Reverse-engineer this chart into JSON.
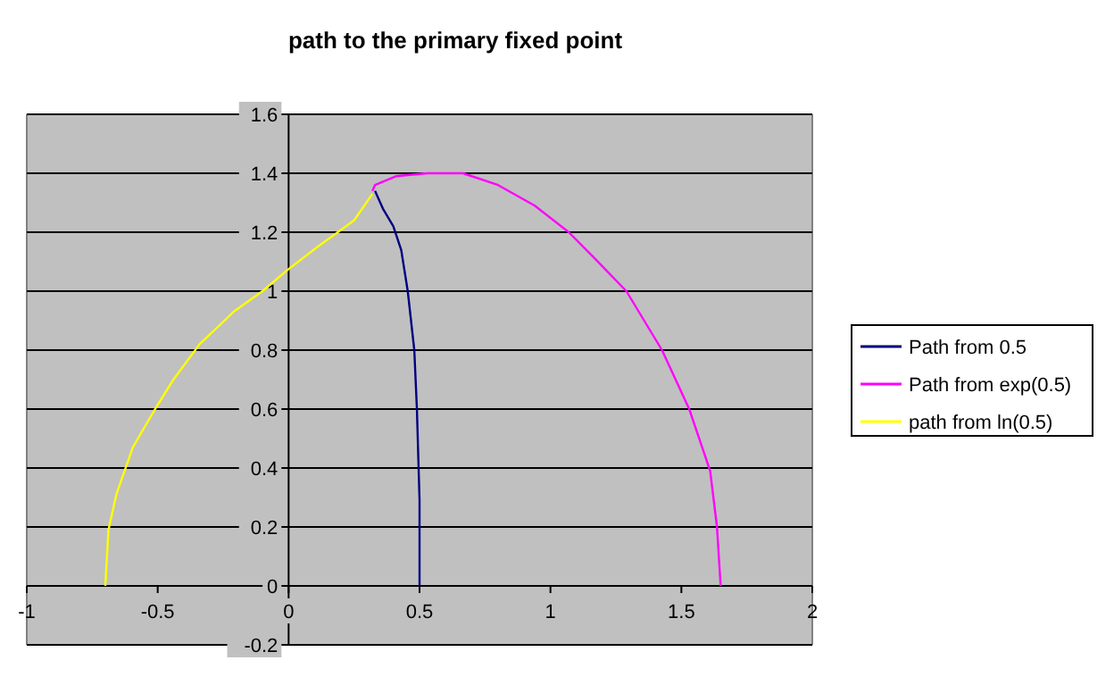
{
  "chart_data": {
    "type": "line",
    "title": "path to the primary fixed point",
    "xlim": [
      -1,
      2
    ],
    "ylim": [
      -0.2,
      1.6
    ],
    "xticks": [
      -1,
      -0.5,
      0,
      0.5,
      1,
      1.5,
      2
    ],
    "yticks": [
      -0.2,
      0,
      0.2,
      0.4,
      0.6,
      0.8,
      1,
      1.2,
      1.4,
      1.6
    ],
    "grid": "y",
    "legend": "right",
    "marker": "none",
    "line_style": "solid",
    "series": [
      {
        "name": "Path from 0.5",
        "color": "#000080",
        "x": [
          0.5,
          0.5,
          0.49,
          0.48,
          0.455,
          0.43,
          0.4,
          0.36,
          0.33
        ],
        "values": [
          0,
          0.29,
          0.6,
          0.8,
          1.0,
          1.14,
          1.22,
          1.28,
          1.34
        ]
      },
      {
        "name": "Path from exp(0.5)",
        "color": "#ff00ff",
        "x": [
          1.65,
          1.636,
          1.61,
          1.53,
          1.426,
          1.29,
          1.17,
          1.07,
          0.94,
          0.8,
          0.666,
          0.53,
          0.41,
          0.33,
          0.32
        ],
        "values": [
          0,
          0.2,
          0.39,
          0.6,
          0.8,
          1.0,
          1.11,
          1.2,
          1.29,
          1.36,
          1.4,
          1.4,
          1.39,
          1.36,
          1.34
        ]
      },
      {
        "name": "path from ln(0.5)",
        "color": "#ffff00",
        "x": [
          -0.7,
          -0.688,
          -0.658,
          -0.595,
          -0.51,
          -0.44,
          -0.34,
          -0.21,
          -0.1,
          -0.007,
          0.11,
          0.25,
          0.32
        ],
        "values": [
          0,
          0.19,
          0.31,
          0.47,
          0.6,
          0.7,
          0.82,
          0.93,
          1.0,
          1.07,
          1.15,
          1.24,
          1.33
        ]
      }
    ]
  }
}
